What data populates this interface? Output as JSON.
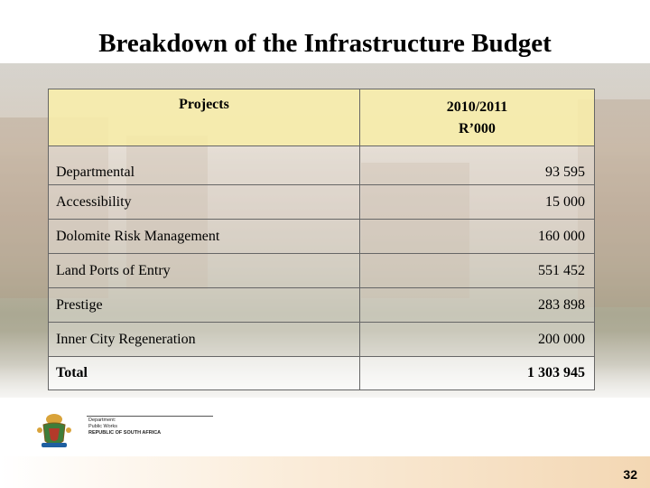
{
  "slide": {
    "title": "Breakdown of the Infrastructure Budget",
    "page_number": "32"
  },
  "table": {
    "header": {
      "col1": "Projects",
      "col2_line1": "2010/2011",
      "col2_line2": "R’000"
    },
    "rows": [
      {
        "project": "Departmental",
        "amount": "93 595"
      },
      {
        "project": "Accessibility",
        "amount": "15 000"
      },
      {
        "project": "Dolomite Risk Management",
        "amount": "160 000"
      },
      {
        "project": "Land Ports of Entry",
        "amount": "551 452"
      },
      {
        "project": "Prestige",
        "amount": "283 898"
      },
      {
        "project": "Inner City Regeneration",
        "amount": "200 000"
      }
    ],
    "total": {
      "label": "Total",
      "amount": "1 303 945"
    }
  },
  "logo": {
    "dept_line1": "Department:",
    "dept_line2": "Public Works",
    "dept_line3": "REPUBLIC OF SOUTH AFRICA"
  },
  "colors": {
    "header_fill": "#faf0aa",
    "footer_accent": "#f3d7b3"
  }
}
